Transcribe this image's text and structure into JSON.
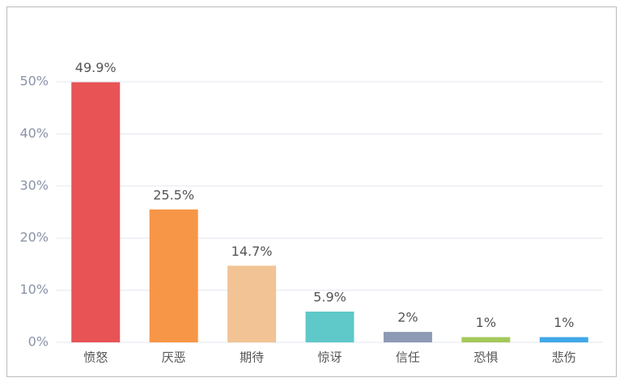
{
  "chart_data": {
    "type": "bar",
    "categories": [
      "愤怒",
      "厌恶",
      "期待",
      "惊讶",
      "信任",
      "恐惧",
      "悲伤"
    ],
    "values": [
      49.9,
      25.5,
      14.7,
      5.9,
      2,
      1,
      1
    ],
    "value_labels": [
      "49.9%",
      "25.5%",
      "14.7%",
      "5.9%",
      "2%",
      "1%",
      "1%"
    ],
    "colors": [
      "#e85356",
      "#f79646",
      "#f2c394",
      "#5fc8c8",
      "#8c9ab5",
      "#a3c85a",
      "#40a8e8"
    ],
    "ylim": [
      0,
      50
    ],
    "yticks": [
      {
        "value": 0,
        "label": "0%"
      },
      {
        "value": 10,
        "label": "10%"
      },
      {
        "value": 20,
        "label": "20%"
      },
      {
        "value": 30,
        "label": "30%"
      },
      {
        "value": 40,
        "label": "40%"
      },
      {
        "value": 50,
        "label": "50%"
      }
    ],
    "grid": true
  }
}
